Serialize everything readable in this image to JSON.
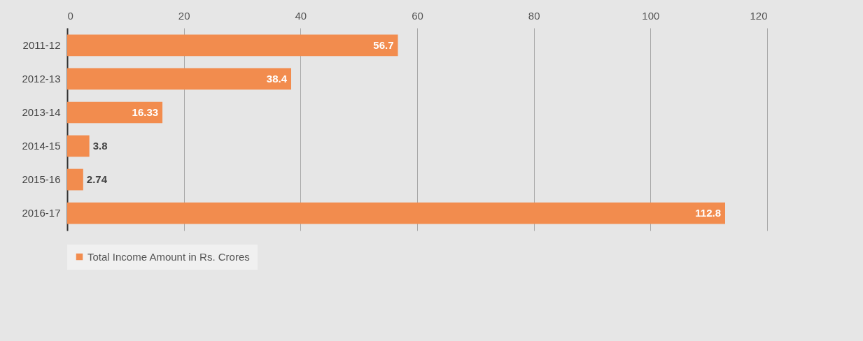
{
  "chart_data": {
    "type": "bar",
    "orientation": "horizontal",
    "categories": [
      "2011-12",
      "2012-13",
      "2013-14",
      "2014-15",
      "2015-16",
      "2016-17"
    ],
    "series": [
      {
        "name": "Total Income Amount in Rs. Crores",
        "color": "#f28c4e",
        "values": [
          56.7,
          38.4,
          16.33,
          3.8,
          2.74,
          112.8
        ]
      }
    ],
    "xlim": [
      0,
      120
    ],
    "xticks": [
      0,
      20,
      40,
      60,
      80,
      100,
      120
    ],
    "grid": "x",
    "legend": "bottom",
    "data_labels": true
  }
}
